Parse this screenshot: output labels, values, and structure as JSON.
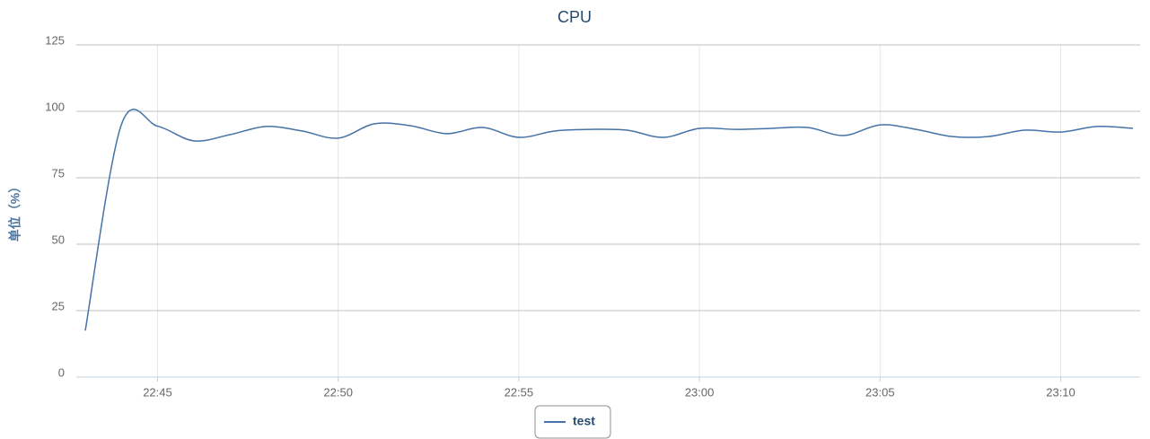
{
  "chart_data": {
    "type": "line",
    "title": "CPU",
    "ylabel": "单位（%）",
    "x": [
      "22:43",
      "22:44",
      "22:45",
      "22:46",
      "22:47",
      "22:48",
      "22:49",
      "22:50",
      "22:51",
      "22:52",
      "22:53",
      "22:54",
      "22:55",
      "22:56",
      "22:57",
      "22:58",
      "22:59",
      "23:00",
      "23:01",
      "23:02",
      "23:03",
      "23:04",
      "23:05",
      "23:06",
      "23:07",
      "23:08",
      "23:09",
      "23:10",
      "23:11",
      "23:12"
    ],
    "series": [
      {
        "name": "test",
        "color": "#4572a7",
        "values": [
          17.5,
          95,
          94.4,
          88.9,
          91.2,
          94.3,
          92.6,
          89.9,
          95.3,
          94.6,
          91.6,
          93.9,
          90.2,
          92.6,
          93.2,
          92.9,
          90.2,
          93.6,
          93.2,
          93.6,
          93.9,
          90.9,
          94.9,
          93.2,
          90.5,
          90.5,
          92.9,
          92.2,
          94.3,
          93.6
        ]
      }
    ],
    "xlim": [
      "22:43",
      "23:12"
    ],
    "xticks": [
      "22:45",
      "22:50",
      "22:55",
      "23:00",
      "23:05",
      "23:10"
    ],
    "ylim": [
      0,
      125
    ],
    "yticks": [
      0,
      25,
      50,
      75,
      100,
      125
    ],
    "grid": true,
    "legend": "bottom"
  }
}
